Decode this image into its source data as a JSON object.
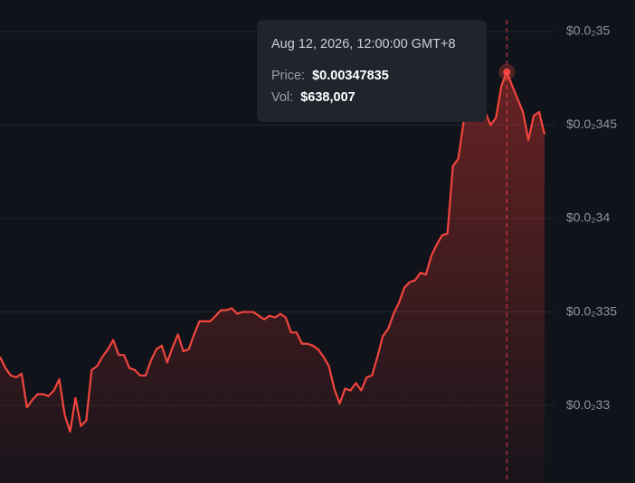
{
  "chart_data": {
    "type": "line",
    "color": "#f2453d",
    "values": [
      0.003326,
      0.00332,
      0.003316,
      0.003315,
      0.003317,
      0.003299,
      0.003303,
      0.003306,
      0.003306,
      0.003305,
      0.003308,
      0.003314,
      0.003295,
      0.003286,
      0.003304,
      0.003289,
      0.003292,
      0.003319,
      0.003321,
      0.003326,
      0.00333,
      0.003335,
      0.003327,
      0.003327,
      0.00332,
      0.003319,
      0.003316,
      0.003316,
      0.003324,
      0.00333,
      0.003332,
      0.003323,
      0.003331,
      0.003338,
      0.003329,
      0.00333,
      0.003338,
      0.003345,
      0.003345,
      0.003345,
      0.003348,
      0.003351,
      0.003351,
      0.003352,
      0.003349,
      0.00335,
      0.00335,
      0.00335,
      0.003348,
      0.003346,
      0.003348,
      0.003347,
      0.003349,
      0.003347,
      0.003339,
      0.003339,
      0.003333,
      0.003333,
      0.003332,
      0.00333,
      0.003326,
      0.003321,
      0.003309,
      0.003301,
      0.003309,
      0.003308,
      0.003312,
      0.003308,
      0.003315,
      0.003316,
      0.003326,
      0.003337,
      0.003341,
      0.003349,
      0.003355,
      0.003363,
      0.003366,
      0.003367,
      0.003371,
      0.00337,
      0.00338,
      0.003386,
      0.003391,
      0.003392,
      0.003428,
      0.003432,
      0.003452,
      0.003454,
      0.003452,
      0.003455,
      0.003457,
      0.00345,
      0.003454,
      0.003471,
      0.00347835,
      0.003471,
      0.003464,
      0.003457,
      0.003442,
      0.003455,
      0.003457,
      0.003445
    ],
    "ylim": [
      0.0032585,
      0.0035169
    ],
    "yticks": [
      {
        "value": 0.0033,
        "label": "$0.0₂33"
      },
      {
        "value": 0.00335,
        "label": "$0.0₂335"
      },
      {
        "value": 0.0034,
        "label": "$0.0₂34"
      },
      {
        "value": 0.00345,
        "label": "$0.0₂345"
      },
      {
        "value": 0.0035,
        "label": "$0.0₂35"
      }
    ],
    "grid": true,
    "tooltip": {
      "date": "Aug 12, 2026, 12:00:00 GMT+8",
      "price_label": "Price:",
      "price": "$0.00347835",
      "vol_label": "Vol:",
      "vol": "$638,007"
    }
  }
}
